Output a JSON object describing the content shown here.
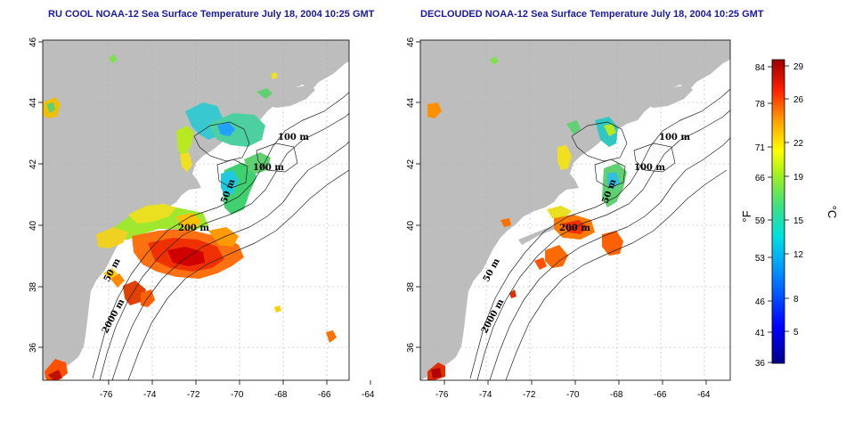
{
  "panels": [
    {
      "id": "left",
      "title": "RU COOL NOAA-12 Sea Surface Temperature July 18, 2004 10:25 GMT",
      "contour_labels": [
        "100 m",
        "100 m",
        "50 m",
        "200 m",
        "50 m",
        "2000 m"
      ]
    },
    {
      "id": "right",
      "title": "DECLOUDED NOAA-12 Sea Surface Temperature July 18, 2004 10:25 GMT",
      "contour_labels": [
        "100 m",
        "100 m",
        "50 m",
        "200 m",
        "50 m",
        "2000 m"
      ]
    }
  ],
  "axes": {
    "lon_ticks": [
      "-76",
      "-74",
      "-72",
      "-70",
      "-68",
      "-66",
      "-64"
    ],
    "lat_ticks": [
      "36",
      "38",
      "40",
      "42",
      "44",
      "46"
    ]
  },
  "colorbar": {
    "fahrenheit_ticks": [
      "84",
      "78",
      "71",
      "66",
      "59",
      "53",
      "46",
      "41",
      "36"
    ],
    "celsius_ticks": [
      "29",
      "26",
      "22",
      "19",
      "15",
      "12",
      "8",
      "5"
    ],
    "fahrenheit_unit": "°F",
    "celsius_unit": "°C"
  },
  "colors": {
    "land": "#bdbdbd",
    "title": "#1a1aa0",
    "grid": "#b0b0b0"
  }
}
